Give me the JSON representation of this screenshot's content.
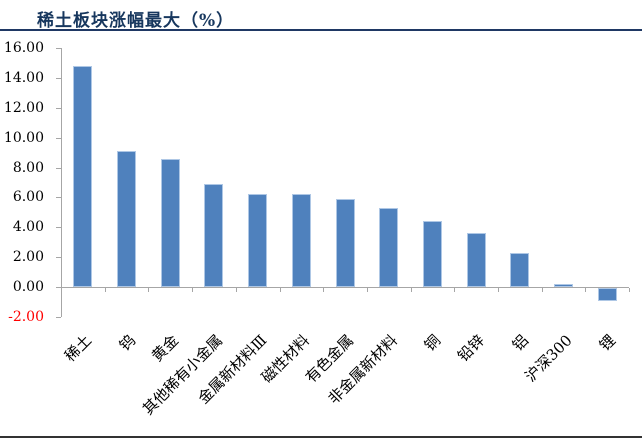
{
  "title": "稀土板块涨幅最大（%）",
  "colors": {
    "title": "#17375E",
    "title_rule": "#1F3864",
    "bottom_rule": "#333333",
    "bar_fill": "#4F81BD",
    "bar_edge": "#AEC7E5",
    "axis": "#A6A6A6",
    "tick_label": "#000000",
    "negative_tick_label": "#FF0000"
  },
  "chart_data": {
    "type": "bar",
    "title": "稀土板块涨幅最大（%）",
    "categories": [
      "稀土",
      "钨",
      "黄金",
      "其他稀有小金属",
      "金属新材料Ⅲ",
      "磁性材料",
      "有色金属",
      "非金属新材料",
      "铜",
      "铅锌",
      "铝",
      "沪深300",
      "锂"
    ],
    "values": [
      14.8,
      9.1,
      8.6,
      6.9,
      6.2,
      6.2,
      5.9,
      5.3,
      4.4,
      3.6,
      2.3,
      0.2,
      -0.9
    ],
    "ylim": [
      -2,
      16
    ],
    "ytick_step": 2,
    "yticks": [
      16,
      14,
      12,
      10,
      8,
      6,
      4,
      2,
      0,
      -2
    ],
    "ytick_labels": [
      "16.00",
      "14.00",
      "12.00",
      "10.00",
      "8.00",
      "6.00",
      "4.00",
      "2.00",
      "0.00",
      "-2.00"
    ],
    "xlabel": "",
    "ylabel": "",
    "grid": false,
    "legend_position": "none",
    "bar_orientation": "vertical",
    "x_label_rotation_deg": 45
  }
}
